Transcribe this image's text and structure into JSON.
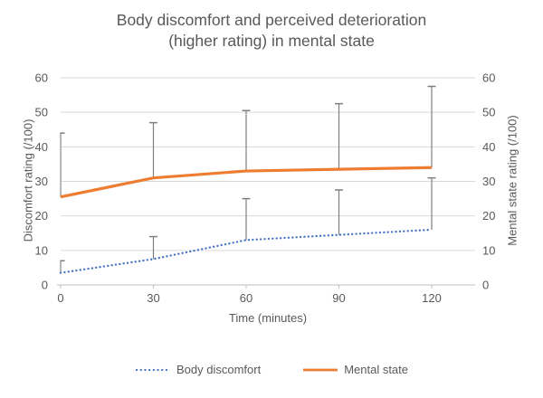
{
  "title": {
    "line1": "Body discomfort and perceived deterioration",
    "line2": "(higher rating) in mental state"
  },
  "chart_data": {
    "type": "line",
    "x": [
      0,
      30,
      60,
      90,
      120
    ],
    "xlabel": "Time (minutes)",
    "ylabel_left": "Discomfort rating (/100)",
    "ylabel_right": "Mental state rating (/100)",
    "ylim": [
      0,
      60
    ],
    "yticks": [
      0,
      10,
      20,
      30,
      40,
      50,
      60
    ],
    "grid": true,
    "legend_position": "bottom",
    "error_bars": "upward only, with caps",
    "series": [
      {
        "name": "Body discomfort",
        "axis": "left",
        "line_style": "dotted",
        "color": "#4472C4",
        "values": [
          3.5,
          7.5,
          13,
          14.5,
          16
        ],
        "error_top": [
          7,
          14,
          25,
          27.5,
          31
        ]
      },
      {
        "name": "Mental state",
        "axis": "right",
        "line_style": "solid",
        "color": "#ED7D31",
        "values": [
          25.5,
          31,
          33,
          33.5,
          34
        ],
        "error_top": [
          44,
          47,
          50.5,
          52.5,
          57.5
        ]
      }
    ]
  },
  "colors": {
    "gridline": "#D9D9D9",
    "axis_line": "#BFBFBF",
    "error_bar": "#7F7F7F",
    "text": "#595959",
    "background": "#FFFFFF"
  }
}
